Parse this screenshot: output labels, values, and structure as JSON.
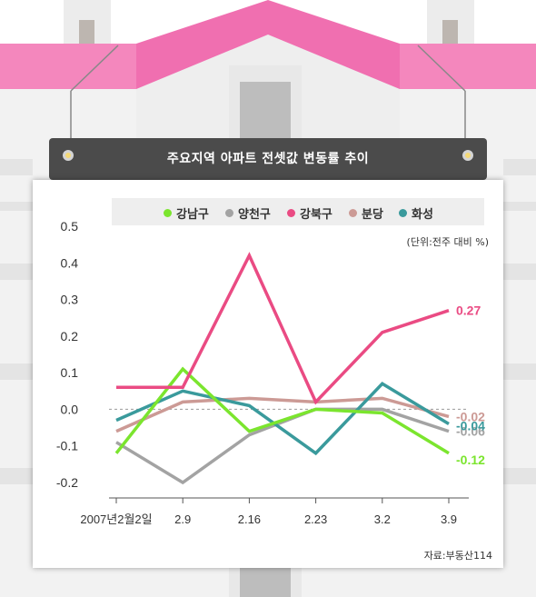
{
  "header": {
    "title": "주요지역 아파트 전셋값 변동률 추이"
  },
  "unit_label": "(단위:전주 대비 %)",
  "source": "자료:부동산114",
  "chart_data": {
    "type": "line",
    "title": "주요지역 아파트 전셋값 변동률 추이",
    "categories": [
      "2007년2월2일",
      "2.9",
      "2.16",
      "2.23",
      "3.2",
      "3.9"
    ],
    "ylim": [
      -0.2,
      0.5
    ],
    "yticks": [
      0.5,
      0.4,
      0.3,
      0.2,
      0.1,
      0.0,
      -0.1,
      -0.2
    ],
    "ytick_labels": [
      "0.5",
      "0.4",
      "0.3",
      "0.2",
      "0.1",
      "0.0",
      "-0.1",
      "-0.2"
    ],
    "grid": false,
    "zero_line": "dashed",
    "legend_position": "top",
    "series": [
      {
        "name": "강남구",
        "color": "#7be52e",
        "values": [
          -0.12,
          0.11,
          -0.06,
          0.0,
          -0.01,
          -0.12
        ],
        "end_label": "-0.12"
      },
      {
        "name": "양천구",
        "color": "#a3a3a3",
        "values": [
          -0.09,
          -0.2,
          -0.07,
          0.0,
          0.0,
          -0.06
        ],
        "end_label": "-0.06"
      },
      {
        "name": "강북구",
        "color": "#ea4b83",
        "values": [
          0.06,
          0.06,
          0.42,
          0.02,
          0.21,
          0.27
        ],
        "end_label": "0.27"
      },
      {
        "name": "분당",
        "color": "#cc9a95",
        "values": [
          -0.06,
          0.02,
          0.03,
          0.02,
          0.03,
          -0.02
        ],
        "end_label": "-0.02"
      },
      {
        "name": "화성",
        "color": "#3a9a9c",
        "values": [
          -0.03,
          0.05,
          0.01,
          -0.12,
          0.07,
          -0.04
        ],
        "end_label": "-0.04"
      }
    ]
  }
}
